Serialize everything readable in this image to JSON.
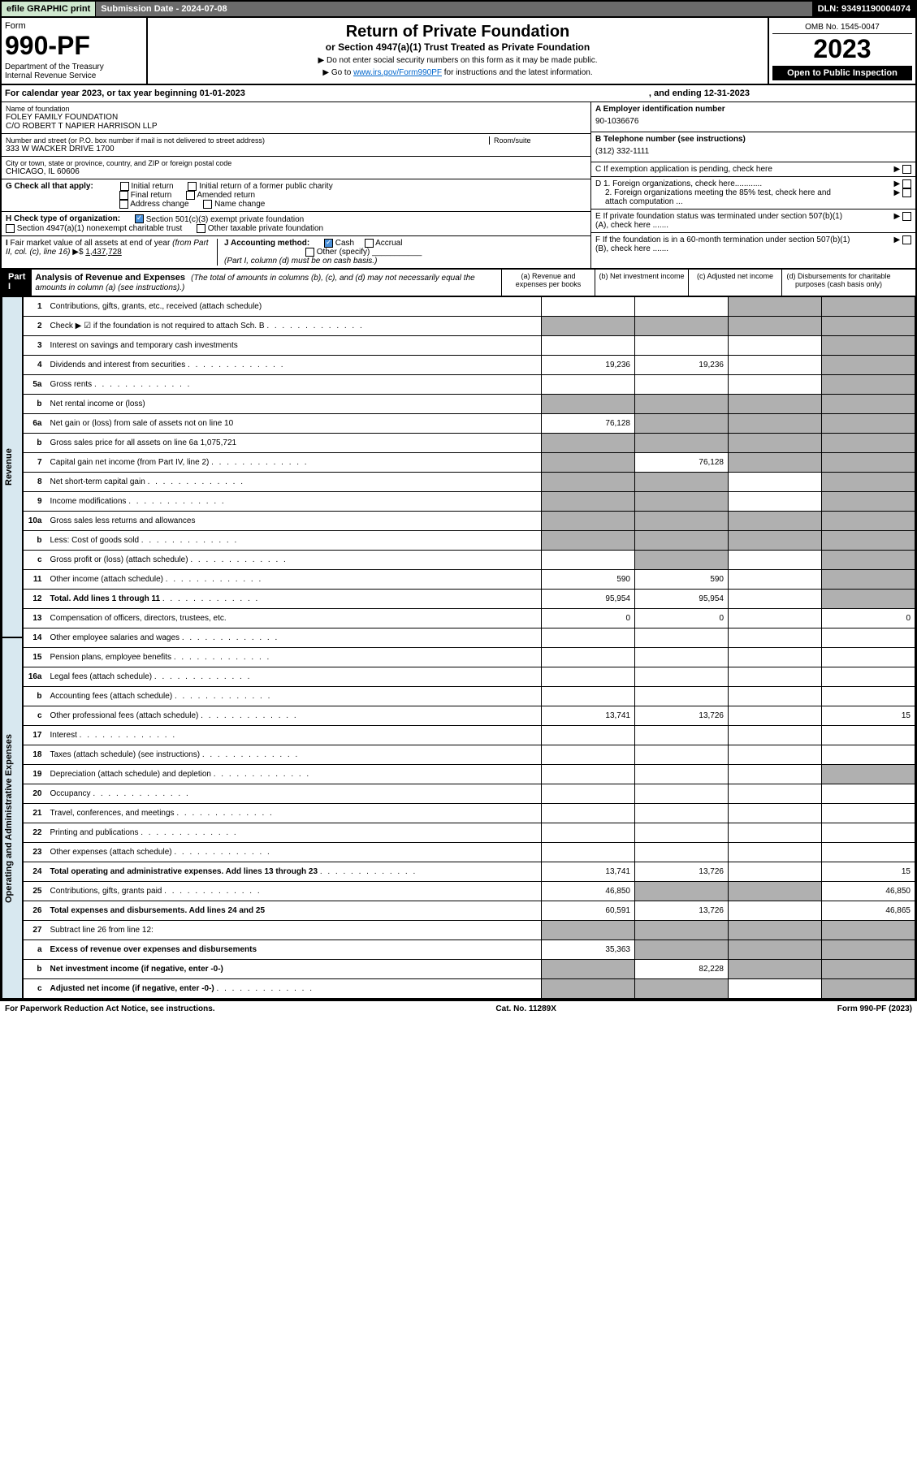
{
  "topbar": {
    "efile": "efile GRAPHIC print",
    "subdate": "Submission Date - 2024-07-08",
    "dln": "DLN: 93491190004074"
  },
  "header": {
    "form_label": "Form",
    "form_no": "990-PF",
    "dept": "Department of the Treasury\nInternal Revenue Service",
    "title": "Return of Private Foundation",
    "subtitle": "or Section 4947(a)(1) Trust Treated as Private Foundation",
    "note1": "▶ Do not enter social security numbers on this form as it may be made public.",
    "note2": "▶ Go to www.irs.gov/Form990PF for instructions and the latest information.",
    "omb": "OMB No. 1545-0047",
    "year": "2023",
    "open": "Open to Public Inspection"
  },
  "calyear": {
    "text": "For calendar year 2023, or tax year beginning 01-01-2023",
    "ending": ", and ending 12-31-2023"
  },
  "entity": {
    "name_label": "Name of foundation",
    "name": "FOLEY FAMILY FOUNDATION\nC/O ROBERT T NAPIER HARRISON LLP",
    "addr_label": "Number and street (or P.O. box number if mail is not delivered to street address)",
    "addr": "333 W WACKER DRIVE 1700",
    "room_label": "Room/suite",
    "city_label": "City or town, state or province, country, and ZIP or foreign postal code",
    "city": "CHICAGO, IL  60606",
    "ein_label": "A Employer identification number",
    "ein": "90-1036676",
    "phone_label": "B Telephone number (see instructions)",
    "phone": "(312) 332-1111",
    "c_label": "C If exemption application is pending, check here",
    "d1": "D 1. Foreign organizations, check here............",
    "d2": "2. Foreign organizations meeting the 85% test, check here and attach computation ...",
    "e_label": "E  If private foundation status was terminated under section 507(b)(1)(A), check here .......",
    "f_label": "F  If the foundation is in a 60-month termination under section 507(b)(1)(B), check here .......",
    "g_label": "G Check all that apply:",
    "g_opts": [
      "Initial return",
      "Initial return of a former public charity",
      "Final return",
      "Amended return",
      "Address change",
      "Name change"
    ],
    "h_label": "H Check type of organization:",
    "h_opts": [
      "Section 501(c)(3) exempt private foundation",
      "Section 4947(a)(1) nonexempt charitable trust",
      "Other taxable private foundation"
    ],
    "i_label": "I Fair market value of all assets at end of year (from Part II, col. (c), line 16) ▶$ ",
    "i_val": "1,437,728",
    "j_label": "J Accounting method:",
    "j_opts": [
      "Cash",
      "Accrual",
      "Other (specify)"
    ],
    "j_note": "(Part I, column (d) must be on cash basis.)"
  },
  "part1": {
    "label": "Part I",
    "title": "Analysis of Revenue and Expenses",
    "title_note": "(The total of amounts in columns (b), (c), and (d) may not necessarily equal the amounts in column (a) (see instructions).)",
    "col_a": "(a)   Revenue and expenses per books",
    "col_b": "(b)   Net investment income",
    "col_c": "(c)   Adjusted net income",
    "col_d": "(d)   Disbursements for charitable purposes (cash basis only)"
  },
  "sides": {
    "rev": "Revenue",
    "exp": "Operating and Administrative Expenses"
  },
  "rows": [
    {
      "n": "1",
      "d": "Contributions, gifts, grants, etc., received (attach schedule)",
      "a": "",
      "b": "",
      "c": "g",
      "dd": "g"
    },
    {
      "n": "2",
      "d": "Check ▶ ☑ if the foundation is not required to attach Sch. B",
      "dots": 1,
      "a": "g",
      "b": "g",
      "c": "g",
      "dd": "g"
    },
    {
      "n": "3",
      "d": "Interest on savings and temporary cash investments",
      "a": "",
      "b": "",
      "c": "",
      "dd": "g"
    },
    {
      "n": "4",
      "d": "Dividends and interest from securities",
      "dots": 1,
      "a": "19,236",
      "b": "19,236",
      "c": "",
      "dd": "g"
    },
    {
      "n": "5a",
      "d": "Gross rents",
      "dots": 1,
      "a": "",
      "b": "",
      "c": "",
      "dd": "g"
    },
    {
      "n": "b",
      "d": "Net rental income or (loss)  ",
      "a": "g",
      "b": "g",
      "c": "g",
      "dd": "g"
    },
    {
      "n": "6a",
      "d": "Net gain or (loss) from sale of assets not on line 10",
      "a": "76,128",
      "b": "g",
      "c": "g",
      "dd": "g"
    },
    {
      "n": "b",
      "d": "Gross sales price for all assets on line 6a              1,075,721",
      "a": "g",
      "b": "g",
      "c": "g",
      "dd": "g"
    },
    {
      "n": "7",
      "d": "Capital gain net income (from Part IV, line 2)",
      "dots": 1,
      "a": "g",
      "b": "76,128",
      "c": "g",
      "dd": "g"
    },
    {
      "n": "8",
      "d": "Net short-term capital gain",
      "dots": 1,
      "a": "g",
      "b": "g",
      "c": "",
      "dd": "g"
    },
    {
      "n": "9",
      "d": "Income modifications",
      "dots": 1,
      "a": "g",
      "b": "g",
      "c": "",
      "dd": "g"
    },
    {
      "n": "10a",
      "d": "Gross sales less returns and allowances  ",
      "a": "g",
      "b": "g",
      "c": "g",
      "dd": "g"
    },
    {
      "n": "b",
      "d": "Less: Cost of goods sold",
      "dots": 1,
      "a": "g",
      "b": "g",
      "c": "g",
      "dd": "g"
    },
    {
      "n": "c",
      "d": "Gross profit or (loss) (attach schedule)",
      "dots": 1,
      "a": "",
      "b": "g",
      "c": "",
      "dd": "g"
    },
    {
      "n": "11",
      "d": "Other income (attach schedule)",
      "dots": 1,
      "a": "590",
      "b": "590",
      "c": "",
      "dd": "g"
    },
    {
      "n": "12",
      "d": "Total. Add lines 1 through 11",
      "bold": 1,
      "dots": 1,
      "a": "95,954",
      "b": "95,954",
      "c": "",
      "dd": "g"
    },
    {
      "n": "13",
      "d": "Compensation of officers, directors, trustees, etc.",
      "a": "0",
      "b": "0",
      "c": "",
      "dd": "0"
    },
    {
      "n": "14",
      "d": "Other employee salaries and wages",
      "dots": 1,
      "a": "",
      "b": "",
      "c": "",
      "dd": ""
    },
    {
      "n": "15",
      "d": "Pension plans, employee benefits",
      "dots": 1,
      "a": "",
      "b": "",
      "c": "",
      "dd": ""
    },
    {
      "n": "16a",
      "d": "Legal fees (attach schedule)",
      "dots": 1,
      "a": "",
      "b": "",
      "c": "",
      "dd": ""
    },
    {
      "n": "b",
      "d": "Accounting fees (attach schedule)",
      "dots": 1,
      "a": "",
      "b": "",
      "c": "",
      "dd": ""
    },
    {
      "n": "c",
      "d": "Other professional fees (attach schedule)",
      "dots": 1,
      "a": "13,741",
      "b": "13,726",
      "c": "",
      "dd": "15"
    },
    {
      "n": "17",
      "d": "Interest",
      "dots": 1,
      "a": "",
      "b": "",
      "c": "",
      "dd": ""
    },
    {
      "n": "18",
      "d": "Taxes (attach schedule) (see instructions)",
      "dots": 1,
      "a": "",
      "b": "",
      "c": "",
      "dd": ""
    },
    {
      "n": "19",
      "d": "Depreciation (attach schedule) and depletion",
      "dots": 1,
      "a": "",
      "b": "",
      "c": "",
      "dd": "g"
    },
    {
      "n": "20",
      "d": "Occupancy",
      "dots": 1,
      "a": "",
      "b": "",
      "c": "",
      "dd": ""
    },
    {
      "n": "21",
      "d": "Travel, conferences, and meetings",
      "dots": 1,
      "a": "",
      "b": "",
      "c": "",
      "dd": ""
    },
    {
      "n": "22",
      "d": "Printing and publications",
      "dots": 1,
      "a": "",
      "b": "",
      "c": "",
      "dd": ""
    },
    {
      "n": "23",
      "d": "Other expenses (attach schedule)",
      "dots": 1,
      "a": "",
      "b": "",
      "c": "",
      "dd": ""
    },
    {
      "n": "24",
      "d": "Total operating and administrative expenses. Add lines 13 through 23",
      "bold": 1,
      "dots": 1,
      "a": "13,741",
      "b": "13,726",
      "c": "",
      "dd": "15"
    },
    {
      "n": "25",
      "d": "Contributions, gifts, grants paid",
      "dots": 1,
      "a": "46,850",
      "b": "g",
      "c": "g",
      "dd": "46,850"
    },
    {
      "n": "26",
      "d": "Total expenses and disbursements. Add lines 24 and 25",
      "bold": 1,
      "a": "60,591",
      "b": "13,726",
      "c": "",
      "dd": "46,865"
    },
    {
      "n": "27",
      "d": "Subtract line 26 from line 12:",
      "a": "g",
      "b": "g",
      "c": "g",
      "dd": "g"
    },
    {
      "n": "a",
      "d": "Excess of revenue over expenses and disbursements",
      "bold": 1,
      "a": "35,363",
      "b": "g",
      "c": "g",
      "dd": "g"
    },
    {
      "n": "b",
      "d": "Net investment income (if negative, enter -0-)",
      "bold": 1,
      "a": "g",
      "b": "82,228",
      "c": "g",
      "dd": "g"
    },
    {
      "n": "c",
      "d": "Adjusted net income (if negative, enter -0-)",
      "bold": 1,
      "dots": 1,
      "a": "g",
      "b": "g",
      "c": "",
      "dd": "g"
    }
  ],
  "footer": {
    "left": "For Paperwork Reduction Act Notice, see instructions.",
    "mid": "Cat. No. 11289X",
    "right": "Form 990-PF (2023)"
  }
}
